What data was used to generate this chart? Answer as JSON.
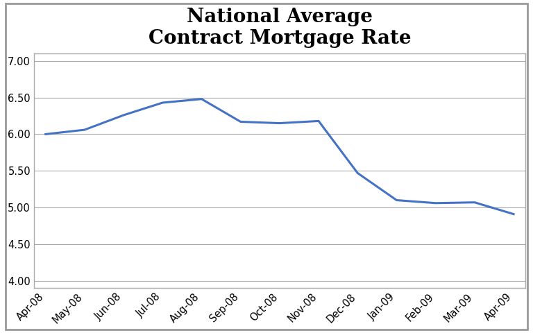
{
  "title": "National Average\nContract Mortgage Rate",
  "x_labels": [
    "Apr-08",
    "May-08",
    "Jun-08",
    "Jul-08",
    "Aug-08",
    "Sep-08",
    "Oct-08",
    "Nov-08",
    "Dec-08",
    "Jan-09",
    "Feb-09",
    "Mar-09",
    "Apr-09"
  ],
  "y_values": [
    6.0,
    6.06,
    6.26,
    6.43,
    6.48,
    6.17,
    6.15,
    6.18,
    5.47,
    5.1,
    5.06,
    5.07,
    4.91
  ],
  "ylim": [
    3.9,
    7.1
  ],
  "yticks": [
    4.0,
    4.5,
    5.0,
    5.5,
    6.0,
    6.5,
    7.0
  ],
  "line_color": "#4472C4",
  "line_width": 2.2,
  "bg_color": "#FFFFFF",
  "plot_bg_color": "#FFFFFF",
  "grid_color": "#AAAAAA",
  "border_color": "#AAAAAA",
  "title_fontsize": 20,
  "tick_fontsize": 10.5,
  "outer_border_color": "#999999"
}
